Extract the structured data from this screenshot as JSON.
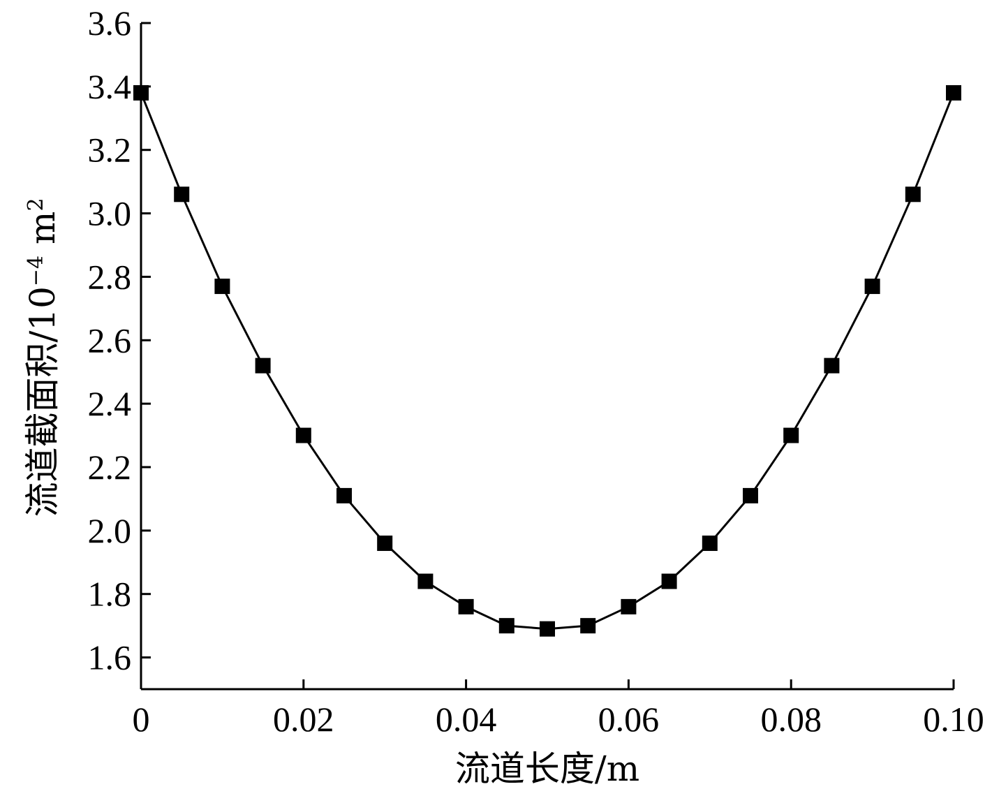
{
  "chart_data": {
    "type": "line",
    "xlabel": "流道长度/m",
    "ylabel": "流道截面积/10",
    "ylabel_exponent": "−4",
    "ylabel_unit": " m",
    "ylabel_unit_power": "2",
    "xlim": [
      0,
      0.1
    ],
    "ylim": [
      1.5,
      3.6
    ],
    "x_ticks": [
      0,
      0.02,
      0.04,
      0.06,
      0.08,
      0.1
    ],
    "x_tick_labels": [
      "0",
      "0.02",
      "0.04",
      "0.06",
      "0.08",
      "0.10"
    ],
    "y_ticks": [
      1.6,
      1.8,
      2.0,
      2.2,
      2.4,
      2.6,
      2.8,
      3.0,
      3.2,
      3.4,
      3.6
    ],
    "y_tick_labels": [
      "1.6",
      "1.8",
      "2.0",
      "2.2",
      "2.4",
      "2.6",
      "2.8",
      "3.0",
      "3.2",
      "3.4",
      "3.6"
    ],
    "grid": false,
    "marker": "square",
    "series": [
      {
        "x": [
          0,
          0.005,
          0.01,
          0.015,
          0.02,
          0.025,
          0.03,
          0.035,
          0.04,
          0.045,
          0.05,
          0.055,
          0.06,
          0.065,
          0.07,
          0.075,
          0.08,
          0.085,
          0.09,
          0.095,
          0.1
        ],
        "values": [
          3.38,
          3.06,
          2.77,
          2.52,
          2.3,
          2.11,
          1.96,
          1.84,
          1.76,
          1.7,
          1.69,
          1.7,
          1.76,
          1.84,
          1.96,
          2.11,
          2.3,
          2.52,
          2.77,
          3.06,
          3.38
        ]
      }
    ]
  }
}
